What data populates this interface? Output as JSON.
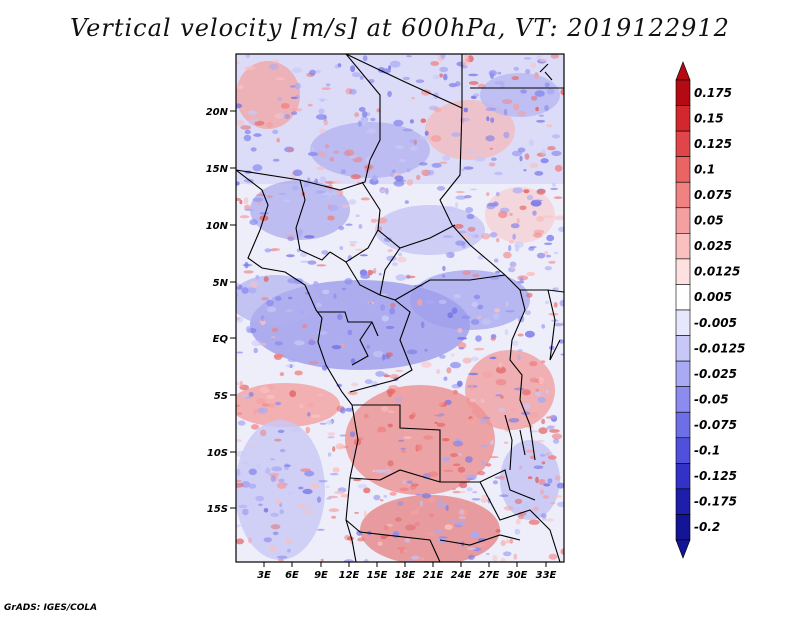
{
  "title": "Vertical velocity [m/s] at 600hPa, VT: 2019122912",
  "credit": "GrADS: IGES/COLA",
  "map": {
    "lat_ticks": [
      "20N",
      "15N",
      "10N",
      "5N",
      "EQ",
      "5S",
      "10S",
      "15S"
    ],
    "lon_ticks": [
      "3E",
      "6E",
      "9E",
      "12E",
      "15E",
      "18E",
      "21E",
      "24E",
      "27E",
      "30E",
      "33E"
    ]
  },
  "colorbar": {
    "labels": [
      "0.175",
      "0.15",
      "0.125",
      "0.1",
      "0.075",
      "0.05",
      "0.025",
      "0.0125",
      "0.005",
      "-0.005",
      "-0.0125",
      "-0.025",
      "-0.05",
      "-0.075",
      "-0.1",
      "-0.125",
      "-0.175",
      "-0.2"
    ],
    "colors": [
      "#b40a14",
      "#d2282d",
      "#e04649",
      "#ea6464",
      "#f08282",
      "#f5a0a0",
      "#fac0c0",
      "#fde0e0",
      "#ffffff",
      "#e6e6fc",
      "#c8c8f8",
      "#aaaaf4",
      "#8c8cf0",
      "#6e6ee6",
      "#5050dc",
      "#3232c8",
      "#1e1eaa",
      "#141496"
    ]
  }
}
